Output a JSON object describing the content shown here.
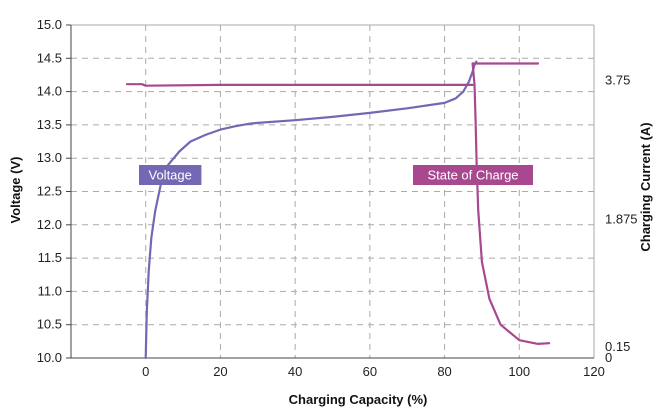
{
  "chart_data": {
    "type": "line",
    "title": "",
    "xlabel": "Charging Capacity (%)",
    "ylabel": "Voltage (V)",
    "y2label": "Charging Current (A)",
    "xlim": [
      -20,
      120
    ],
    "ylim": [
      10.0,
      15.0
    ],
    "y2lim": [
      0,
      4.5
    ],
    "grid": true,
    "x_ticks": [
      "0",
      "20",
      "40",
      "60",
      "80",
      "100",
      "120"
    ],
    "y_ticks": [
      "10.0",
      "10.5",
      "11.0",
      "11.5",
      "12.0",
      "12.5",
      "13.0",
      "13.5",
      "14.0",
      "14.5",
      "15.0"
    ],
    "y2_ticks": [
      "0",
      "0.15",
      "1.875",
      "3.75"
    ],
    "colors": {
      "voltage": "#7268b3",
      "soc": "#a8498f",
      "grid": "#aaaaaa"
    },
    "series": [
      {
        "name": "Voltage",
        "axis": "left",
        "x": [
          0,
          0.3,
          0.8,
          1.5,
          2.5,
          4,
          6,
          9,
          12,
          16,
          20,
          24,
          28,
          30,
          40,
          50,
          60,
          70,
          80,
          83,
          85,
          86.5,
          87.5,
          88,
          88.5
        ],
        "y": [
          10.0,
          10.7,
          11.3,
          11.8,
          12.2,
          12.6,
          12.9,
          13.1,
          13.25,
          13.35,
          13.43,
          13.48,
          13.52,
          13.53,
          13.57,
          13.62,
          13.68,
          13.75,
          13.83,
          13.9,
          14.0,
          14.15,
          14.3,
          14.4,
          14.45
        ]
      },
      {
        "name": "State of Charge",
        "axis": "right",
        "x": [
          -5,
          -1,
          0,
          20,
          40,
          60,
          80,
          86.5,
          87.5,
          87.5,
          95,
          105,
          87.5,
          88,
          88.3,
          88.6,
          89,
          90,
          92,
          95,
          100,
          105,
          108
        ],
        "y": [
          3.7,
          3.7,
          3.68,
          3.69,
          3.69,
          3.69,
          3.69,
          3.69,
          3.69,
          3.98,
          3.98,
          3.98,
          3.98,
          3.7,
          3.2,
          2.6,
          2.0,
          1.3,
          0.8,
          0.45,
          0.24,
          0.19,
          0.2
        ],
        "segments": [
          [
            0,
            9
          ],
          [
            9,
            12
          ],
          [
            12,
            23
          ]
        ]
      }
    ],
    "annotations": [
      {
        "text": "Voltage",
        "series": "Voltage"
      },
      {
        "text": "State of Charge",
        "series": "State of Charge"
      }
    ]
  }
}
